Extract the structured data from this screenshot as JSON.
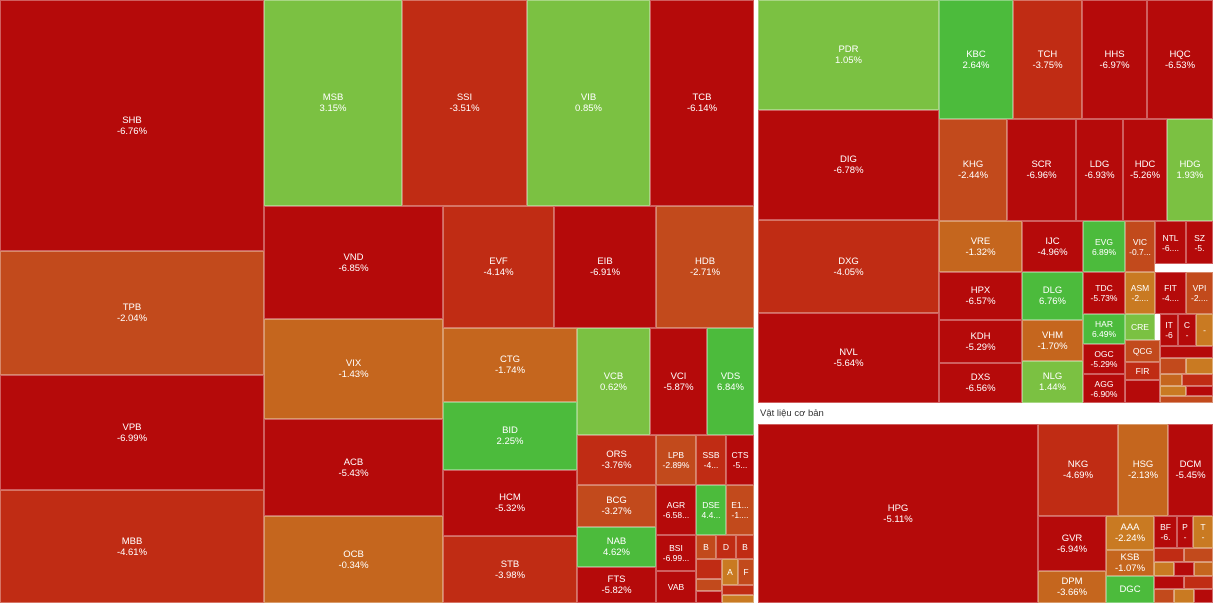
{
  "chart_data": {
    "type": "treemap",
    "colors": {
      "strong_down": "#b50a0a",
      "down": "#c02c14",
      "mild_down": "#c24a1c",
      "slight_down": "#c5661e",
      "flat": "#c97a22",
      "slight_up": "#7bc142",
      "strong_up": "#4cbb3c"
    },
    "sectors": [
      {
        "name": "",
        "tiles": [
          {
            "ticker": "SHB",
            "change": "-6.76%"
          },
          {
            "ticker": "TPB",
            "change": "-2.04%"
          },
          {
            "ticker": "VPB",
            "change": "-6.99%"
          },
          {
            "ticker": "MBB",
            "change": "-4.61%"
          },
          {
            "ticker": "MSB",
            "change": "3.15%"
          },
          {
            "ticker": "SSI",
            "change": "-3.51%"
          },
          {
            "ticker": "VIB",
            "change": "0.85%"
          },
          {
            "ticker": "TCB",
            "change": "-6.14%"
          },
          {
            "ticker": "VND",
            "change": "-6.85%"
          },
          {
            "ticker": "EVF",
            "change": "-4.14%"
          },
          {
            "ticker": "EIB",
            "change": "-6.91%"
          },
          {
            "ticker": "HDB",
            "change": "-2.71%"
          },
          {
            "ticker": "VIX",
            "change": "-1.43%"
          },
          {
            "ticker": "CTG",
            "change": "-1.74%"
          },
          {
            "ticker": "VCB",
            "change": "0.62%"
          },
          {
            "ticker": "VCI",
            "change": "-5.87%"
          },
          {
            "ticker": "VDS",
            "change": "6.84%"
          },
          {
            "ticker": "ACB",
            "change": "-5.43%"
          },
          {
            "ticker": "BID",
            "change": "2.25%"
          },
          {
            "ticker": "ORS",
            "change": "-3.76%"
          },
          {
            "ticker": "LPB",
            "change": "-2.89%"
          },
          {
            "ticker": "SSB",
            "change": "-4..."
          },
          {
            "ticker": "CTS",
            "change": "-5..."
          },
          {
            "ticker": "HCM",
            "change": "-5.32%"
          },
          {
            "ticker": "BCG",
            "change": "-3.27%"
          },
          {
            "ticker": "AGR",
            "change": "-6.58..."
          },
          {
            "ticker": "DSE",
            "change": "4.4..."
          },
          {
            "ticker": "E1...",
            "change": "-1...."
          },
          {
            "ticker": "OCB",
            "change": "-0.34%"
          },
          {
            "ticker": "STB",
            "change": "-3.98%"
          },
          {
            "ticker": "NAB",
            "change": "4.62%"
          },
          {
            "ticker": "B",
            "change": ""
          },
          {
            "ticker": "D",
            "change": ""
          },
          {
            "ticker": "B",
            "change": ""
          },
          {
            "ticker": "BSI",
            "change": "-6.99..."
          },
          {
            "ticker": "A",
            "change": ""
          },
          {
            "ticker": "F",
            "change": ""
          },
          {
            "ticker": "FTS",
            "change": "-5.82%"
          },
          {
            "ticker": "VAB",
            "change": ""
          }
        ]
      },
      {
        "name": "",
        "tiles": [
          {
            "ticker": "PDR",
            "change": "1.05%"
          },
          {
            "ticker": "KBC",
            "change": "2.64%"
          },
          {
            "ticker": "TCH",
            "change": "-3.75%"
          },
          {
            "ticker": "HHS",
            "change": "-6.97%"
          },
          {
            "ticker": "HQC",
            "change": "-6.53%"
          },
          {
            "ticker": "DIG",
            "change": "-6.78%"
          },
          {
            "ticker": "KHG",
            "change": "-2.44%"
          },
          {
            "ticker": "SCR",
            "change": "-6.96%"
          },
          {
            "ticker": "LDG",
            "change": "-6.93%"
          },
          {
            "ticker": "HDC",
            "change": "-5.26%"
          },
          {
            "ticker": "HDG",
            "change": "1.93%"
          },
          {
            "ticker": "DXG",
            "change": "-4.05%"
          },
          {
            "ticker": "VRE",
            "change": "-1.32%"
          },
          {
            "ticker": "IJC",
            "change": "-4.96%"
          },
          {
            "ticker": "EVG",
            "change": "6.89%"
          },
          {
            "ticker": "VIC",
            "change": "-0.7..."
          },
          {
            "ticker": "NTL",
            "change": "-6...."
          },
          {
            "ticker": "SZ",
            "change": "-5."
          },
          {
            "ticker": "HPX",
            "change": "-6.57%"
          },
          {
            "ticker": "DLG",
            "change": "6.76%"
          },
          {
            "ticker": "TDC",
            "change": "-5.73%"
          },
          {
            "ticker": "ASM",
            "change": "-2...."
          },
          {
            "ticker": "FIT",
            "change": "-4...."
          },
          {
            "ticker": "VPI",
            "change": "-2...."
          },
          {
            "ticker": "HAR",
            "change": "6.49%"
          },
          {
            "ticker": "CRE",
            "change": ""
          },
          {
            "ticker": "IT",
            "change": "-6"
          },
          {
            "ticker": "C",
            "change": "-"
          },
          {
            "ticker": "-",
            "change": ""
          },
          {
            "ticker": "NVL",
            "change": "-5.64%"
          },
          {
            "ticker": "KDH",
            "change": "-5.29%"
          },
          {
            "ticker": "VHM",
            "change": "-1.70%"
          },
          {
            "ticker": "OGC",
            "change": "-5.29%"
          },
          {
            "ticker": "QCG",
            "change": ""
          },
          {
            "ticker": "FIR",
            "change": ""
          },
          {
            "ticker": "DXS",
            "change": "-6.56%"
          },
          {
            "ticker": "NLG",
            "change": "1.44%"
          },
          {
            "ticker": "AGG",
            "change": "-6.90%"
          }
        ]
      },
      {
        "name": "Vật liệu cơ bản",
        "tiles": [
          {
            "ticker": "HPG",
            "change": "-5.11%"
          },
          {
            "ticker": "NKG",
            "change": "-4.69%"
          },
          {
            "ticker": "HSG",
            "change": "-2.13%"
          },
          {
            "ticker": "DCM",
            "change": "-5.45%"
          },
          {
            "ticker": "GVR",
            "change": "-6.94%"
          },
          {
            "ticker": "AAA",
            "change": "-2.24%"
          },
          {
            "ticker": "BF",
            "change": "-6."
          },
          {
            "ticker": "P",
            "change": "-"
          },
          {
            "ticker": "T",
            "change": "-"
          },
          {
            "ticker": "KSB",
            "change": "-1.07%"
          },
          {
            "ticker": "DPM",
            "change": "-3.66%"
          },
          {
            "ticker": "DGC",
            "change": ""
          }
        ]
      }
    ]
  }
}
